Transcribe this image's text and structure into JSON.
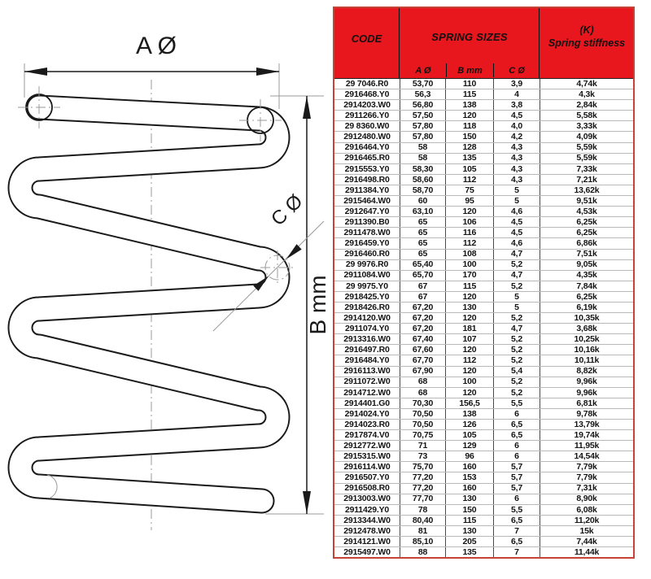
{
  "diagram": {
    "outer_diameter_label": "A Ø",
    "length_label": "B mm",
    "wire_diameter_label": "C Ø"
  },
  "table": {
    "colors": {
      "header_background": "#e8161d",
      "header_text": "#111111",
      "outer_border": "#c64339",
      "row_divider": "#b9b9b9",
      "column_divider": "#4a4a4a"
    },
    "header": {
      "code_label": "CODE",
      "sizes_label": "SPRING SIZES",
      "stiffness_label_line1": "(K)",
      "stiffness_label_line2": "Spring stiffness",
      "sub_columns": [
        "A Ø",
        "B mm",
        "C Ø"
      ]
    },
    "rows": [
      [
        "29 7046.R0",
        "53,70",
        "110",
        "3,9",
        "4,74k"
      ],
      [
        "2916468.Y0",
        "56,3",
        "115",
        "4",
        "4,3k"
      ],
      [
        "2914203.W0",
        "56,80",
        "138",
        "3,8",
        "2,84k"
      ],
      [
        "2911266.Y0",
        "57,50",
        "120",
        "4,5",
        "5,58k"
      ],
      [
        "29 8360.W0",
        "57,80",
        "118",
        "4,0",
        "3,33k"
      ],
      [
        "2912480.W0",
        "57,80",
        "150",
        "4,2",
        "4,09k"
      ],
      [
        "2916464.Y0",
        "58",
        "128",
        "4,3",
        "5,59k"
      ],
      [
        "2916465.R0",
        "58",
        "135",
        "4,3",
        "5,59k"
      ],
      [
        "2915553.Y0",
        "58,30",
        "105",
        "4,3",
        "7,33k"
      ],
      [
        "2916498.R0",
        "58,60",
        "112",
        "4,3",
        "7,21k"
      ],
      [
        "2911384.Y0",
        "58,70",
        "75",
        "5",
        "13,62k"
      ],
      [
        "2915464.W0",
        "60",
        "95",
        "5",
        "9,51k"
      ],
      [
        "2912647.Y0",
        "63,10",
        "120",
        "4,6",
        "4,53k"
      ],
      [
        "2911390.B0",
        "65",
        "106",
        "4,5",
        "6,25k"
      ],
      [
        "2911478.W0",
        "65",
        "116",
        "4,5",
        "6,25k"
      ],
      [
        "2916459.Y0",
        "65",
        "112",
        "4,6",
        "6,86k"
      ],
      [
        "2916460.R0",
        "65",
        "108",
        "4,7",
        "7,51k"
      ],
      [
        "29 9976.R0",
        "65,40",
        "100",
        "5,2",
        "9,05k"
      ],
      [
        "2911084.W0",
        "65,70",
        "170",
        "4,7",
        "4,35k"
      ],
      [
        "29 9975.Y0",
        "67",
        "115",
        "5,2",
        "7,84k"
      ],
      [
        "2918425.Y0",
        "67",
        "120",
        "5",
        "6,25k"
      ],
      [
        "2918426.R0",
        "67,20",
        "130",
        "5",
        "6,19k"
      ],
      [
        "2914120.W0",
        "67,20",
        "120",
        "5,2",
        "10,35k"
      ],
      [
        "2911074.Y0",
        "67,20",
        "181",
        "4,7",
        "3,68k"
      ],
      [
        "2913316.W0",
        "67,40",
        "107",
        "5,2",
        "10,25k"
      ],
      [
        "2916497.R0",
        "67,60",
        "120",
        "5,2",
        "10,16k"
      ],
      [
        "2916484.Y0",
        "67,70",
        "112",
        "5,2",
        "10,11k"
      ],
      [
        "2916113.W0",
        "67,90",
        "120",
        "5,4",
        "8,82k"
      ],
      [
        "2911072.W0",
        "68",
        "100",
        "5,2",
        "9,96k"
      ],
      [
        "2914712.W0",
        "68",
        "120",
        "5,2",
        "9,96k"
      ],
      [
        "2914401.G0",
        "70,30",
        "156,5",
        "5,5",
        "6,81k"
      ],
      [
        "2914024.Y0",
        "70,50",
        "138",
        "6",
        "9,78k"
      ],
      [
        "2914023.R0",
        "70,50",
        "126",
        "6,5",
        "13,79k"
      ],
      [
        "2917874.V0",
        "70,75",
        "105",
        "6,5",
        "19,74k"
      ],
      [
        "2912772.W0",
        "71",
        "129",
        "6",
        "11,95k"
      ],
      [
        "2915315.W0",
        "73",
        "96",
        "6",
        "14,54k"
      ],
      [
        "2916114.W0",
        "75,70",
        "160",
        "5,7",
        "7,79k"
      ],
      [
        "2916507.Y0",
        "77,20",
        "153",
        "5,7",
        "7,79k"
      ],
      [
        "2916508.R0",
        "77,20",
        "160",
        "5,7",
        "7,31k"
      ],
      [
        "2913003.W0",
        "77,70",
        "130",
        "6",
        "8,90k"
      ],
      [
        "2911429.Y0",
        "78",
        "150",
        "5,5",
        "6,08k"
      ],
      [
        "2913344.W0",
        "80,40",
        "115",
        "6,5",
        "11,20k"
      ],
      [
        "2912478.W0",
        "81",
        "130",
        "7",
        "15k"
      ],
      [
        "2914121.W0",
        "85,10",
        "205",
        "6,5",
        "7,44k"
      ],
      [
        "2915497.W0",
        "88",
        "135",
        "7",
        "11,44k"
      ]
    ]
  }
}
